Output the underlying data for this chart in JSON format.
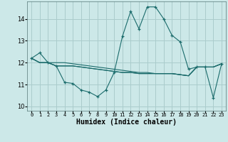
{
  "xlabel": "Humidex (Indice chaleur)",
  "background_color": "#cce8e8",
  "grid_color": "#aacccc",
  "line_color": "#1a6b6b",
  "xlim": [
    -0.5,
    23.5
  ],
  "ylim": [
    9.8,
    14.8
  ],
  "yticks": [
    10,
    11,
    12,
    13,
    14
  ],
  "series1": [
    12.2,
    12.45,
    12.0,
    11.85,
    11.1,
    11.05,
    10.75,
    10.65,
    10.45,
    10.75,
    11.55,
    13.2,
    14.35,
    13.55,
    14.55,
    14.55,
    14.0,
    13.25,
    12.95,
    11.7,
    11.8,
    11.8,
    10.4,
    11.95
  ],
  "series2": [
    12.2,
    12.0,
    12.0,
    11.85,
    11.85,
    11.85,
    11.8,
    11.75,
    11.7,
    11.65,
    11.6,
    11.55,
    11.55,
    11.5,
    11.5,
    11.5,
    11.5,
    11.5,
    11.45,
    11.4,
    11.8,
    11.8,
    11.8,
    11.95
  ],
  "series3": [
    12.2,
    12.0,
    12.0,
    11.85,
    11.85,
    11.85,
    11.8,
    11.75,
    11.7,
    11.65,
    11.6,
    11.55,
    11.55,
    11.5,
    11.5,
    11.5,
    11.5,
    11.5,
    11.45,
    11.4,
    11.8,
    11.8,
    11.8,
    11.95
  ],
  "series4": [
    12.2,
    12.0,
    12.0,
    12.0,
    12.0,
    11.95,
    11.9,
    11.85,
    11.8,
    11.75,
    11.7,
    11.65,
    11.6,
    11.55,
    11.55,
    11.5,
    11.5,
    11.5,
    11.45,
    11.4,
    11.8,
    11.8,
    11.8,
    11.95
  ],
  "xlabel_fontsize": 7,
  "ytick_fontsize": 6,
  "xtick_fontsize": 5
}
